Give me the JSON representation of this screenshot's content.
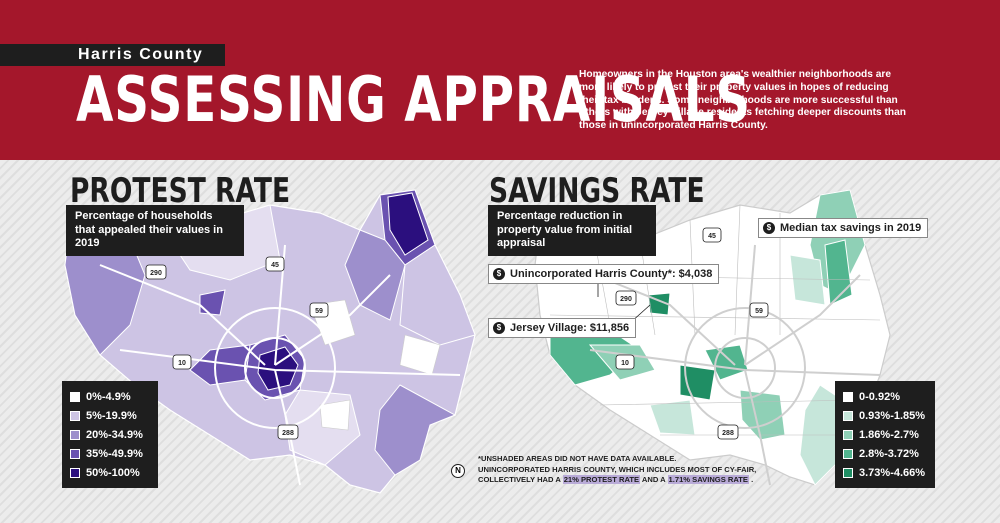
{
  "header": {
    "kicker": "Harris County",
    "title": "ASSESSING APPRAISALS",
    "intro": "Homeowners in the Houston area's wealthier neighborhoods are more likely to protest their property values in hopes of reducing their tax burdens. Some neighborhoods are more successful than others with Jersey Village residents fetching deeper discounts than those in unincorporated Harris County."
  },
  "protest": {
    "title": "PROTEST RATE",
    "subtitle": "Percentage of households that appealed their values in 2019",
    "legend": [
      {
        "label": "0%-4.9%",
        "color": "#ffffff"
      },
      {
        "label": "5%-19.9%",
        "color": "#cdc4e4"
      },
      {
        "label": "20%-34.9%",
        "color": "#9d8fcc"
      },
      {
        "label": "35%-49.9%",
        "color": "#6a52b0"
      },
      {
        "label": "50%-100%",
        "color": "#2b0f7e"
      }
    ]
  },
  "savings": {
    "title": "SAVINGS RATE",
    "subtitle": "Percentage reduction in property value from initial appraisal",
    "legend": [
      {
        "label": "0-0.92%",
        "color": "#ffffff"
      },
      {
        "label": "0.93%-1.85%",
        "color": "#c6e6da"
      },
      {
        "label": "1.86%-2.7%",
        "color": "#8fd0b6"
      },
      {
        "label": "2.8%-3.72%",
        "color": "#52b58f"
      },
      {
        "label": "3.73%-4.66%",
        "color": "#1f8e64"
      }
    ],
    "callouts": {
      "median": "Median tax savings in 2019",
      "unincorporated": "Unincorporated Harris County*: $4,038",
      "jersey": "Jersey Village: $11,856"
    }
  },
  "highways": [
    "290",
    "45",
    "59",
    "10",
    "288"
  ],
  "footnote": {
    "line1": "*UNSHADED AREAS DID NOT HAVE DATA AVAILABLE.",
    "line2": "UNINCORPORATED HARRIS COUNTY, WHICH INCLUDES MOST OF CY-FAIR,",
    "line3a": "COLLECTIVELY HAD A",
    "hl1": "21% PROTEST RATE",
    "line3b": "AND A",
    "hl2": "1.71% SAVINGS RATE",
    "line3c": "."
  },
  "north_label": "N"
}
